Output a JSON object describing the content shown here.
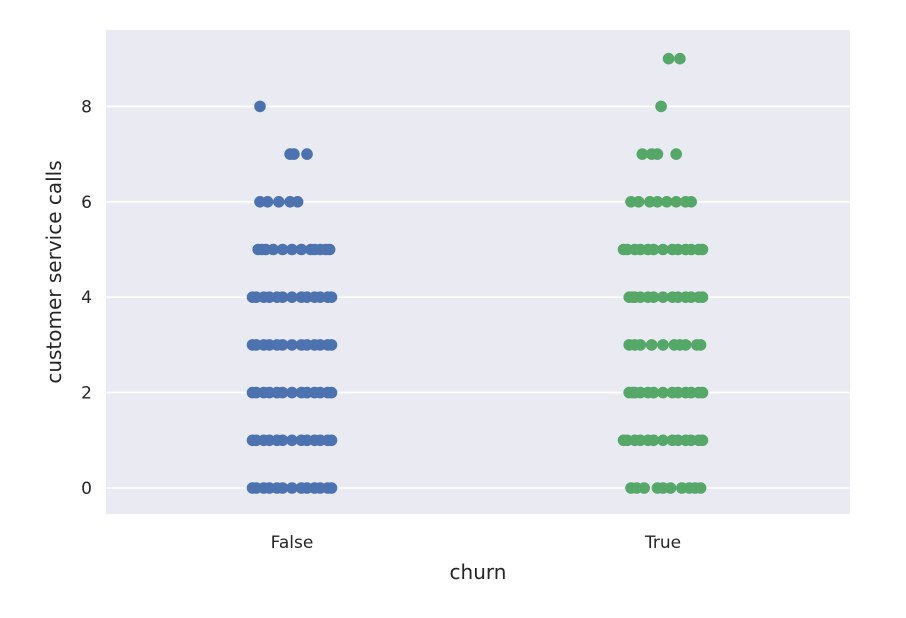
{
  "chart_data": {
    "type": "scatter",
    "subtype": "stripplot",
    "title": "",
    "xlabel": "churn",
    "ylabel": "customer service calls",
    "categories": [
      "False",
      "True"
    ],
    "ylim": [
      -0.55,
      9.5
    ],
    "yticks": [
      0,
      2,
      4,
      6,
      8
    ],
    "grid": true,
    "legend": "none",
    "style": {
      "background": "#eaeaf2",
      "grid_color": "#ffffff"
    },
    "series": [
      {
        "category": "False",
        "color": "#4c72b0",
        "values": [
          [
            0,
            0.21
          ],
          [
            0,
            -0.21
          ],
          [
            0,
            0.08
          ],
          [
            0,
            -0.08
          ],
          [
            0,
            0.15
          ],
          [
            0,
            -0.15
          ],
          [
            0,
            0.0
          ],
          [
            0,
            0.19
          ],
          [
            0,
            -0.19
          ],
          [
            0,
            0.05
          ],
          [
            0,
            -0.05
          ],
          [
            0,
            0.12
          ],
          [
            0,
            -0.12
          ],
          [
            1,
            0.21
          ],
          [
            1,
            -0.21
          ],
          [
            1,
            0.08
          ],
          [
            1,
            -0.08
          ],
          [
            1,
            0.15
          ],
          [
            1,
            -0.15
          ],
          [
            1,
            0.0
          ],
          [
            1,
            0.19
          ],
          [
            1,
            -0.19
          ],
          [
            1,
            0.05
          ],
          [
            1,
            -0.05
          ],
          [
            1,
            0.12
          ],
          [
            1,
            -0.12
          ],
          [
            2,
            0.21
          ],
          [
            2,
            -0.21
          ],
          [
            2,
            0.08
          ],
          [
            2,
            -0.08
          ],
          [
            2,
            0.15
          ],
          [
            2,
            -0.15
          ],
          [
            2,
            0.0
          ],
          [
            2,
            0.19
          ],
          [
            2,
            -0.19
          ],
          [
            2,
            0.05
          ],
          [
            2,
            -0.05
          ],
          [
            2,
            0.12
          ],
          [
            2,
            -0.12
          ],
          [
            3,
            0.21
          ],
          [
            3,
            -0.21
          ],
          [
            3,
            0.08
          ],
          [
            3,
            -0.08
          ],
          [
            3,
            0.15
          ],
          [
            3,
            -0.15
          ],
          [
            3,
            0.0
          ],
          [
            3,
            0.19
          ],
          [
            3,
            -0.19
          ],
          [
            3,
            0.05
          ],
          [
            3,
            -0.05
          ],
          [
            3,
            0.12
          ],
          [
            3,
            -0.12
          ],
          [
            4,
            0.21
          ],
          [
            4,
            -0.21
          ],
          [
            4,
            0.08
          ],
          [
            4,
            -0.08
          ],
          [
            4,
            0.15
          ],
          [
            4,
            -0.15
          ],
          [
            4,
            0.0
          ],
          [
            4,
            0.19
          ],
          [
            4,
            -0.19
          ],
          [
            4,
            0.05
          ],
          [
            4,
            -0.05
          ],
          [
            4,
            0.12
          ],
          [
            4,
            -0.12
          ],
          [
            5,
            0.2
          ],
          [
            5,
            -0.18
          ],
          [
            5,
            0.1
          ],
          [
            5,
            -0.1
          ],
          [
            5,
            0.15
          ],
          [
            5,
            0.05
          ],
          [
            5,
            -0.05
          ],
          [
            5,
            0.0
          ],
          [
            5,
            -0.14
          ],
          [
            5,
            0.18
          ],
          [
            5,
            -0.16
          ],
          [
            5,
            0.12
          ],
          [
            6,
            -0.17
          ],
          [
            6,
            -0.13
          ],
          [
            6,
            -0.07
          ],
          [
            6,
            -0.01
          ],
          [
            6,
            0.03
          ],
          [
            7,
            -0.01
          ],
          [
            7,
            0.01
          ],
          [
            7,
            0.08
          ],
          [
            8,
            -0.17
          ]
        ]
      },
      {
        "category": "True",
        "color": "#55a868",
        "values": [
          [
            0,
            -0.17
          ],
          [
            0,
            -0.1
          ],
          [
            0,
            -0.03
          ],
          [
            0,
            0.04
          ],
          [
            0,
            0.1
          ],
          [
            0,
            0.17
          ],
          [
            0,
            -0.14
          ],
          [
            0,
            0.0
          ],
          [
            0,
            0.14
          ],
          [
            0,
            0.2
          ],
          [
            1,
            0.21
          ],
          [
            1,
            -0.21
          ],
          [
            1,
            0.08
          ],
          [
            1,
            -0.08
          ],
          [
            1,
            0.15
          ],
          [
            1,
            -0.15
          ],
          [
            1,
            0.0
          ],
          [
            1,
            0.19
          ],
          [
            1,
            -0.19
          ],
          [
            1,
            0.05
          ],
          [
            1,
            -0.05
          ],
          [
            1,
            0.12
          ],
          [
            1,
            -0.12
          ],
          [
            2,
            0.21
          ],
          [
            2,
            -0.18
          ],
          [
            2,
            0.08
          ],
          [
            2,
            -0.08
          ],
          [
            2,
            0.15
          ],
          [
            2,
            -0.15
          ],
          [
            2,
            0.0
          ],
          [
            2,
            0.19
          ],
          [
            2,
            -0.16
          ],
          [
            2,
            0.05
          ],
          [
            2,
            -0.05
          ],
          [
            2,
            0.12
          ],
          [
            2,
            -0.12
          ],
          [
            3,
            -0.18
          ],
          [
            3,
            -0.12
          ],
          [
            3,
            -0.06
          ],
          [
            3,
            0.0
          ],
          [
            3,
            0.06
          ],
          [
            3,
            0.12
          ],
          [
            3,
            0.18
          ],
          [
            3,
            -0.15
          ],
          [
            3,
            0.09
          ],
          [
            3,
            0.2
          ],
          [
            4,
            0.21
          ],
          [
            4,
            -0.18
          ],
          [
            4,
            0.08
          ],
          [
            4,
            -0.08
          ],
          [
            4,
            0.15
          ],
          [
            4,
            -0.15
          ],
          [
            4,
            0.0
          ],
          [
            4,
            0.19
          ],
          [
            4,
            -0.16
          ],
          [
            4,
            0.05
          ],
          [
            4,
            -0.05
          ],
          [
            4,
            0.12
          ],
          [
            4,
            -0.12
          ],
          [
            5,
            0.21
          ],
          [
            5,
            -0.21
          ],
          [
            5,
            0.08
          ],
          [
            5,
            -0.08
          ],
          [
            5,
            0.15
          ],
          [
            5,
            -0.15
          ],
          [
            5,
            0.0
          ],
          [
            5,
            0.19
          ],
          [
            5,
            -0.19
          ],
          [
            5,
            0.05
          ],
          [
            5,
            -0.05
          ],
          [
            5,
            0.12
          ],
          [
            5,
            -0.12
          ],
          [
            6,
            -0.17
          ],
          [
            6,
            -0.13
          ],
          [
            6,
            -0.07
          ],
          [
            6,
            -0.03
          ],
          [
            6,
            0.02
          ],
          [
            6,
            0.07
          ],
          [
            6,
            0.12
          ],
          [
            6,
            0.15
          ],
          [
            7,
            -0.11
          ],
          [
            7,
            -0.06
          ],
          [
            7,
            -0.03
          ],
          [
            7,
            0.07
          ],
          [
            8,
            -0.01
          ],
          [
            9,
            0.03
          ],
          [
            9,
            0.09
          ]
        ]
      }
    ]
  }
}
